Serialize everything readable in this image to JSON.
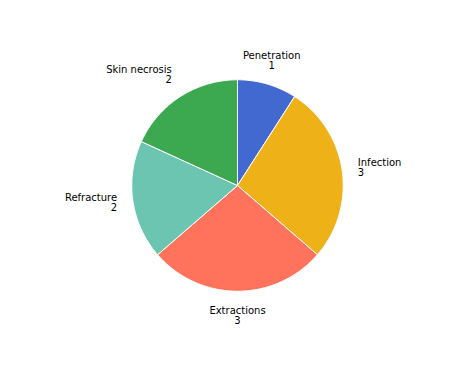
{
  "chart_data": {
    "type": "pie",
    "categories": [
      "Penetration",
      "Infection",
      "Extractions",
      "Refracture",
      "Skin necrosis"
    ],
    "values": [
      1,
      3,
      3,
      2,
      2
    ],
    "data_labels": true
  }
}
